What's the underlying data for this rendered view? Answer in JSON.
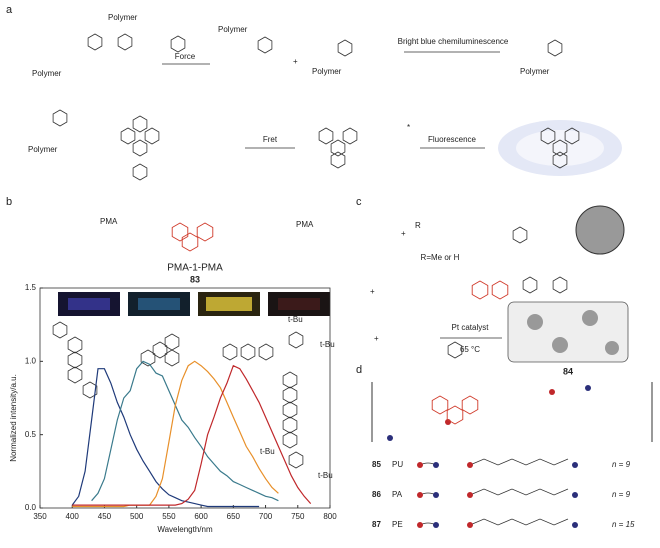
{
  "figure": {
    "panel_labels": [
      "a",
      "b",
      "c",
      "d"
    ],
    "panel_a": {
      "polymer_labels": [
        "Polymer",
        "Polymer",
        "Polymer",
        "Polymer",
        "Polymer",
        "Polymer"
      ],
      "plus": "+",
      "arrow_force": "Force",
      "arrow_chemi": "Bright blue chemiluminescence",
      "arrow_fret": "Fret",
      "arrow_fluor": "Fluorescence",
      "charge": "*"
    },
    "panel_b": {
      "pma": [
        "PMA",
        "PMA"
      ],
      "name": "PMA-1-PMA",
      "number": "83",
      "tbu": [
        "t-Bu",
        "t-Bu",
        "t-Bu",
        "t-Bu"
      ]
    },
    "panel_c": {
      "r_group": "R",
      "r_note": "R=Me or H",
      "plus": [
        "+",
        "+",
        "+"
      ],
      "catalyst": "Pt catalyst",
      "temperature": "65 °C",
      "number": "84"
    },
    "panel_d": {
      "rows": [
        {
          "number": "85",
          "label": "PU",
          "n": "n = 9"
        },
        {
          "number": "86",
          "label": "PA",
          "n": "n = 9"
        },
        {
          "number": "87",
          "label": "PE",
          "n": "n = 15"
        }
      ]
    }
  },
  "chart_data": {
    "type": "line",
    "xlabel": "Wavelength/nm",
    "ylabel": "Normalized intensity/a.u.",
    "x": [
      400,
      410,
      420,
      430,
      440,
      450,
      460,
      470,
      480,
      490,
      500,
      510,
      520,
      530,
      540,
      550,
      560,
      570,
      580,
      590,
      600,
      610,
      620,
      630,
      640,
      650,
      660,
      670,
      680,
      690,
      700,
      710,
      720,
      730,
      740,
      750,
      760,
      770
    ],
    "series": [
      {
        "color": "#1f3a7a",
        "values": [
          0.02,
          0.08,
          0.25,
          0.6,
          0.95,
          0.95,
          0.85,
          0.72,
          0.62,
          0.5,
          0.4,
          0.32,
          0.25,
          0.18,
          0.13,
          0.09,
          0.07,
          0.05,
          0.04,
          0.03,
          0.02,
          0.01,
          0.01,
          0.01,
          0.01,
          0.01,
          0.01,
          0.01,
          0.01,
          0.01,
          null,
          null,
          null,
          null,
          null,
          null,
          null,
          null
        ]
      },
      {
        "color": "#3a7a8c",
        "values": [
          null,
          null,
          null,
          0.05,
          0.1,
          0.2,
          0.4,
          0.6,
          0.75,
          0.8,
          0.95,
          1.0,
          0.98,
          0.92,
          0.9,
          0.8,
          0.7,
          0.6,
          0.55,
          0.48,
          0.42,
          0.35,
          0.3,
          0.25,
          0.22,
          0.18,
          0.16,
          0.14,
          0.12,
          0.1,
          0.08,
          0.07,
          0.05,
          null,
          null,
          null,
          null,
          null
        ]
      },
      {
        "color": "#e8902a",
        "values": [
          0.01,
          0.01,
          0.01,
          0.01,
          0.01,
          0.01,
          0.01,
          0.01,
          0.01,
          0.02,
          0.02,
          0.02,
          0.02,
          0.08,
          0.2,
          0.45,
          0.7,
          0.87,
          0.97,
          1.0,
          0.97,
          0.93,
          0.88,
          0.82,
          0.72,
          0.62,
          0.52,
          0.42,
          0.35,
          0.27,
          0.2,
          0.14,
          0.1,
          null,
          null,
          null,
          null,
          null
        ]
      },
      {
        "color": "#c0282b",
        "values": [
          0.02,
          0.02,
          0.02,
          0.02,
          0.02,
          0.02,
          0.02,
          0.02,
          0.02,
          0.02,
          0.02,
          0.02,
          0.02,
          0.02,
          0.02,
          0.02,
          0.02,
          0.03,
          0.06,
          0.12,
          0.3,
          0.5,
          0.62,
          0.75,
          0.85,
          0.97,
          0.95,
          0.88,
          0.8,
          0.72,
          0.62,
          0.52,
          0.42,
          0.32,
          0.22,
          0.14,
          0.08,
          0.03
        ]
      }
    ],
    "xlim": [
      350,
      800
    ],
    "ylim": [
      0,
      1.5
    ],
    "xticks": [
      350,
      400,
      450,
      500,
      550,
      600,
      650,
      700,
      750,
      800
    ],
    "yticks": [
      {
        "value": 0,
        "label": "0.0"
      },
      {
        "value": 0.5,
        "label": "0.5"
      },
      {
        "value": 1,
        "label": "1.0"
      },
      {
        "value": 1.5,
        "label": "1.5"
      }
    ]
  }
}
